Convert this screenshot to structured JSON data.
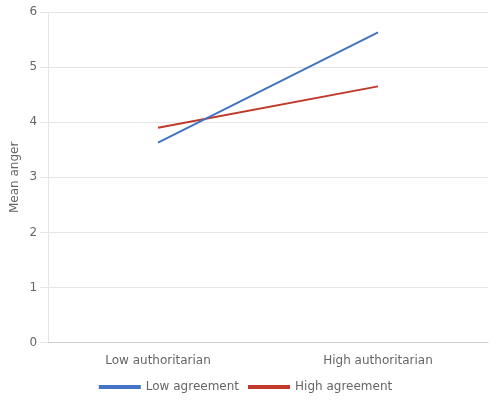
{
  "chart_data": {
    "type": "line",
    "categories": [
      "Low authoritarian",
      "High authoritarian"
    ],
    "series": [
      {
        "name": "Low agreement",
        "color": "#4472c4",
        "values": [
          3.63,
          5.63
        ]
      },
      {
        "name": "High agreement",
        "color": "#c0392b",
        "values": [
          3.9,
          4.65
        ]
      }
    ],
    "ylabel": "Mean anger",
    "ylim": [
      0,
      6
    ],
    "yticks": [
      0,
      1,
      2,
      3,
      4,
      5,
      6
    ],
    "grid": "y",
    "legend": "bottom"
  }
}
